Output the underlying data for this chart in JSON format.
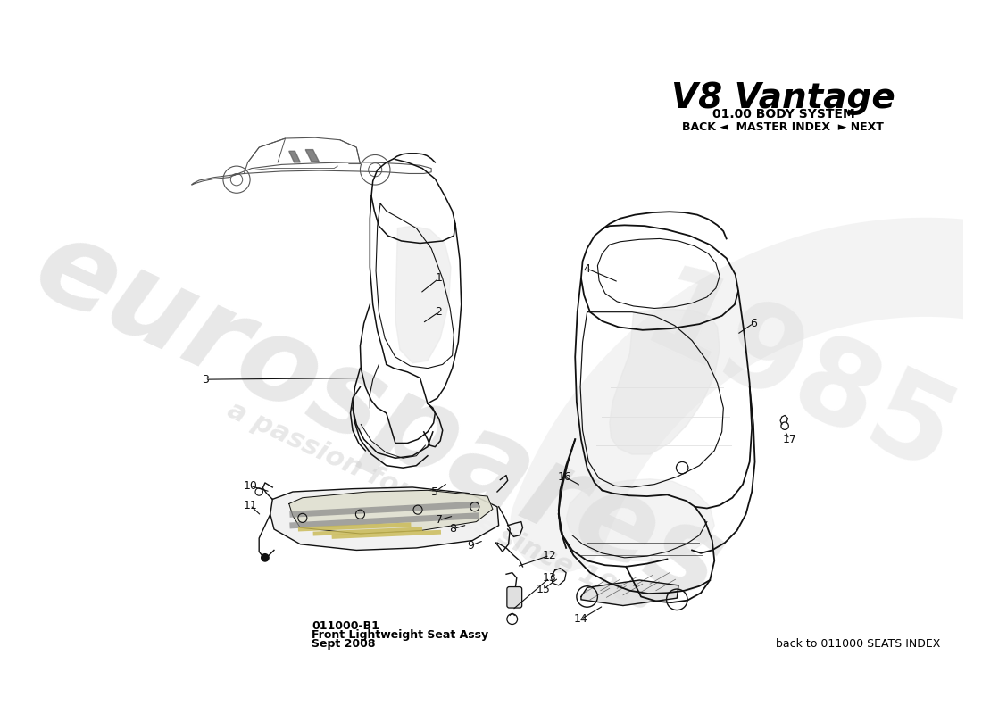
{
  "title": "V8 Vantage",
  "subtitle": "01.00 BODY SYSTEM",
  "nav_text": "BACK ◄  MASTER INDEX  ► NEXT",
  "bottom_left_code": "011000-B1",
  "bottom_left_line1": "Front Lightweight Seat Assy",
  "bottom_left_line2": "Sept 2008",
  "bottom_right_text": "back to 011000 SEATS INDEX",
  "watermark_line1": "eurospares",
  "watermark_line2": "a passion for parts since 1985",
  "background_color": "#ffffff",
  "text_color": "#000000"
}
